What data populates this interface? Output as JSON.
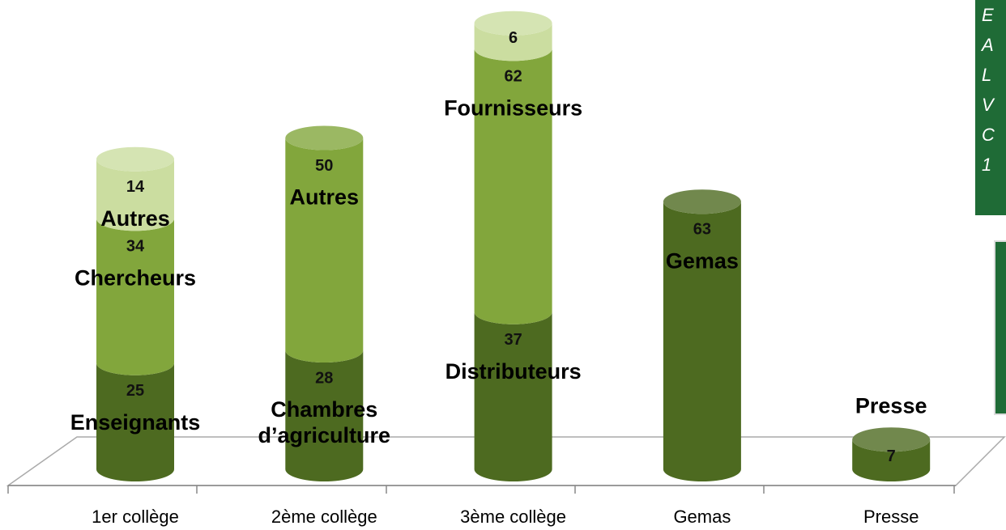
{
  "chart_data": {
    "type": "stacked_cylinder",
    "categories": [
      "1er collège",
      "2ème collège",
      "3ème collège",
      "Gemas",
      "Presse"
    ],
    "series": [
      {
        "color": "#4d6a20",
        "values": [
          25,
          28,
          37,
          63,
          7
        ],
        "labels": [
          "Enseignants",
          "Chambres d’agriculture",
          "Distributeurs",
          "Gemas",
          "Presse"
        ]
      },
      {
        "color": "#82a63c",
        "values": [
          34,
          50,
          62,
          null,
          null
        ],
        "labels": [
          "Chercheurs",
          "Autres",
          "Fournisseurs",
          null,
          null
        ]
      },
      {
        "color": "#cbdda0",
        "values": [
          14,
          null,
          6,
          null,
          null
        ],
        "labels": [
          "Autres",
          null,
          null,
          null,
          null
        ]
      }
    ]
  },
  "side_note": [
    "E",
    "A",
    "L",
    "V",
    "C",
    "1"
  ]
}
